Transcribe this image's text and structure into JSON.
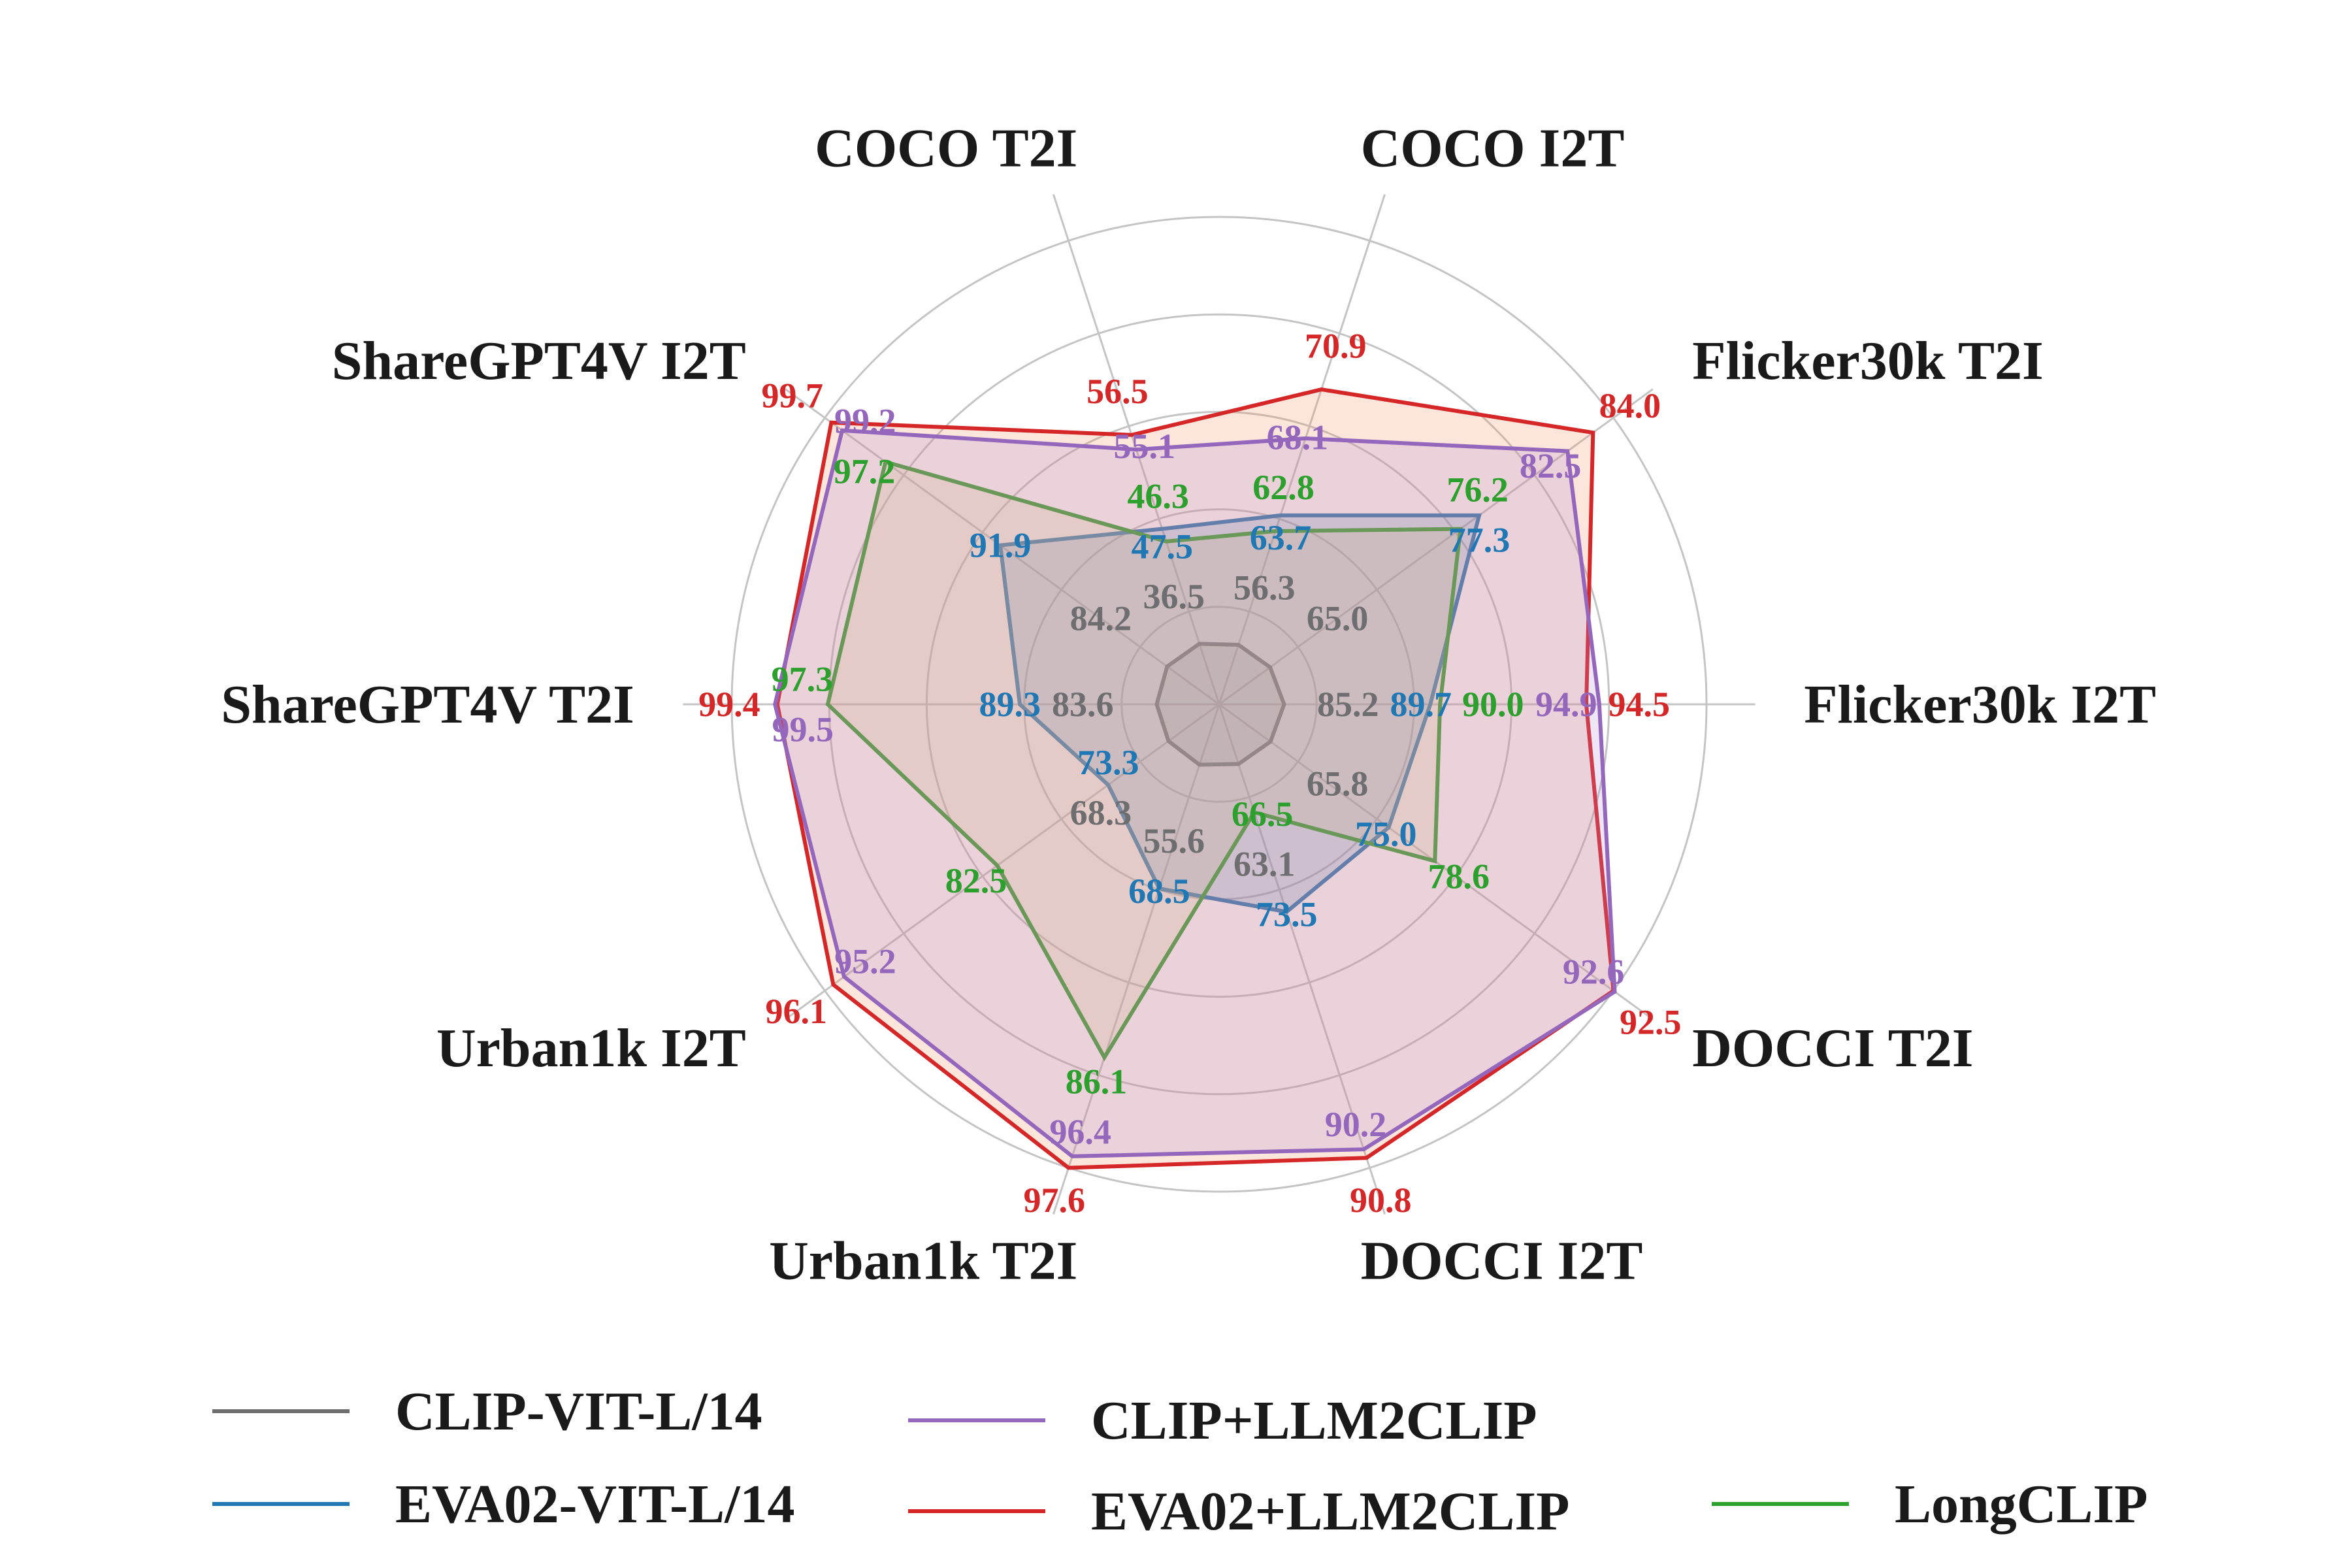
{
  "chart_data": {
    "type": "radar",
    "title": "",
    "axes": [
      "COCO T2I",
      "COCO I2T",
      "Flicker30k T2I",
      "Flicker30k I2T",
      "DOCCI T2I",
      "DOCCI I2T",
      "Urban1k T2I",
      "Urban1k I2T",
      "ShareGPT4V T2I",
      "ShareGPT4V I2T"
    ],
    "axis_ranges": [
      [
        30.7,
        75.1
      ],
      [
        52.9,
        79.4
      ],
      [
        62.0,
        85.2
      ],
      [
        83.2,
        98.2
      ],
      [
        61.8,
        92.5
      ],
      [
        58.9,
        91.5
      ],
      [
        49.3,
        97.6
      ],
      [
        64.1,
        96.8
      ],
      [
        81.0,
        101.3
      ],
      [
        81.8,
        100.0
      ]
    ],
    "grid": true,
    "legend_position": "bottom",
    "series": [
      {
        "name": "CLIP-VIT-L/14",
        "color": "#6e6e70",
        "values": [
          36.5,
          56.3,
          65.0,
          85.2,
          65.8,
          63.1,
          55.6,
          68.3,
          83.6,
          84.2
        ]
      },
      {
        "name": "EVA02-VIT-L/14",
        "color": "#1f77b4",
        "values": [
          47.5,
          63.7,
          77.3,
          89.7,
          75.0,
          73.5,
          68.5,
          73.3,
          89.3,
          91.9
        ]
      },
      {
        "name": "CLIP+LLM2CLIP",
        "color": "#9467bd",
        "values": [
          55.1,
          68.1,
          82.5,
          94.9,
          92.6,
          90.2,
          96.4,
          95.2,
          99.5,
          99.2
        ]
      },
      {
        "name": "EVA02+LLM2CLIP",
        "color": "#d62728",
        "values": [
          56.5,
          70.9,
          84.0,
          94.5,
          92.5,
          90.8,
          97.6,
          96.1,
          99.4,
          99.7
        ]
      },
      {
        "name": "LongCLIP",
        "color": "#2ca02c",
        "values": [
          46.3,
          62.8,
          76.2,
          90.0,
          78.6,
          66.5,
          86.1,
          82.5,
          97.3,
          97.2
        ]
      }
    ]
  }
}
